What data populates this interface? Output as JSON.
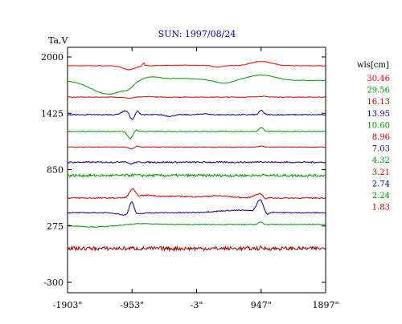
{
  "chart_data": {
    "type": "line",
    "title": "SUN: 1997/08/24",
    "ylabel": "Ta,V",
    "xlabel": "",
    "xlim": [
      -1903,
      1897
    ],
    "ylim": [
      -300,
      2000
    ],
    "x_ticks": [
      -1903,
      -953,
      -3,
      947,
      1897
    ],
    "x_tick_labels": [
      "-1903\"",
      "-953\"",
      "-3\"",
      "947\"",
      "1897\""
    ],
    "y_ticks": [
      2000,
      1425,
      850,
      275,
      -300
    ],
    "y_tick_labels": [
      "2000",
      "1425",
      "850",
      "275",
      "-300"
    ],
    "legend_title": "wls[cm]",
    "legend_placement": "right",
    "grid": false,
    "series": [
      {
        "name": "30.46",
        "color": "#ff0000",
        "baseline": 1910,
        "amplitude": 1.0,
        "noise": 3
      },
      {
        "name": "29.56",
        "color": "#009900",
        "baseline": 1760,
        "amplitude": 1.0,
        "noise": 2
      },
      {
        "name": "16.13",
        "color": "#cc0000",
        "baseline": 1590,
        "amplitude": 0.5,
        "noise": 3
      },
      {
        "name": "13.95",
        "color": "#000099",
        "baseline": 1410,
        "amplitude": 1.0,
        "noise": 5
      },
      {
        "name": "10.60",
        "color": "#009900",
        "baseline": 1240,
        "amplitude": 0.9,
        "noise": 4
      },
      {
        "name": "8.96",
        "color": "#cc0000",
        "baseline": 1080,
        "amplitude": 0.6,
        "noise": 3
      },
      {
        "name": "7.03",
        "color": "#000099",
        "baseline": 925,
        "amplitude": 0.7,
        "noise": 7
      },
      {
        "name": "4.32",
        "color": "#009900",
        "baseline": 790,
        "amplitude": 0.3,
        "noise": 13
      },
      {
        "name": "3.21",
        "color": "#cc0000",
        "baseline": 560,
        "amplitude": 0.9,
        "noise": 6
      },
      {
        "name": "2.74",
        "color": "#000099",
        "baseline": 410,
        "amplitude": 1.0,
        "noise": 5
      },
      {
        "name": "2.24",
        "color": "#009900",
        "baseline": 290,
        "amplitude": 0.4,
        "noise": 4
      },
      {
        "name": "1.83",
        "color": "#990000",
        "baseline": 45,
        "amplitude": 0.2,
        "noise": 20
      }
    ]
  }
}
